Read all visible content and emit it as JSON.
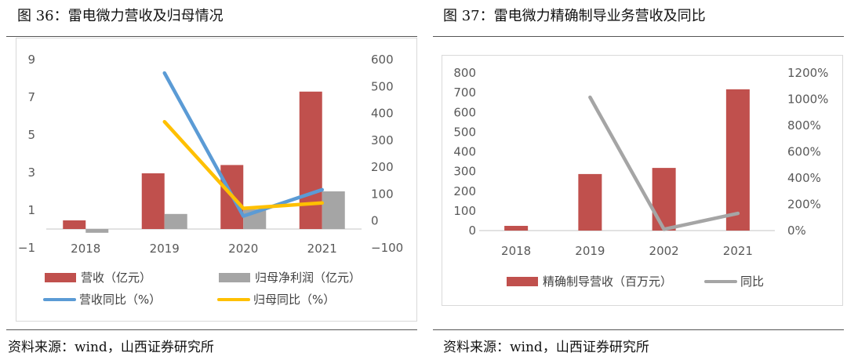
{
  "figures": [
    {
      "title": "图 36：雷电微力营收及归母情况",
      "source": "资料来源：wind，山西证券研究所"
    },
    {
      "title": "图 37：雷电微力精确制导业务营收及同比",
      "source": "资料来源：wind，山西证券研究所"
    }
  ],
  "colors": {
    "revenue": "#c0504d",
    "profit": "#a5a5a5",
    "revenue_yoy": "#5b9bd5",
    "profit_yoy": "#ffc000",
    "yoy_gray": "#a5a5a5"
  },
  "chart_data": [
    {
      "type": "bar",
      "title": "雷电微力营收及归母情况",
      "categories": [
        "2018",
        "2019",
        "2020",
        "2021"
      ],
      "left_axis": {
        "ticks": [
          "9",
          "7",
          "5",
          "3",
          "1",
          "−1"
        ],
        "range": [
          -1,
          9
        ]
      },
      "right_axis": {
        "ticks": [
          "600",
          "500",
          "400",
          "300",
          "200",
          "100",
          "0",
          "−100"
        ],
        "range": [
          -100,
          600
        ]
      },
      "series": [
        {
          "name": "营收（亿元）",
          "kind": "bar",
          "axis": "left",
          "values": [
            0.46,
            2.96,
            3.4,
            7.3
          ]
        },
        {
          "name": "归母净利润（亿元）",
          "kind": "bar",
          "axis": "left",
          "values": [
            -0.2,
            0.8,
            1.05,
            2.0
          ]
        },
        {
          "name": "营收同比（%）",
          "kind": "line",
          "axis": "right",
          "values": [
            null,
            550,
            18,
            116
          ]
        },
        {
          "name": "归母同比（%）",
          "kind": "line",
          "axis": "right",
          "values": [
            null,
            369,
            47,
            67
          ]
        }
      ],
      "legend": "bottom"
    },
    {
      "type": "bar",
      "title": "雷电微力精确制导业务营收及同比",
      "categories": [
        "2018",
        "2019",
        "2002",
        "2021"
      ],
      "left_axis": {
        "ticks": [
          "800",
          "700",
          "600",
          "500",
          "400",
          "300",
          "200",
          "100",
          "0"
        ],
        "range": [
          0,
          800
        ]
      },
      "right_axis": {
        "ticks": [
          "1200%",
          "1000%",
          "800%",
          "600%",
          "400%",
          "200%",
          "0%"
        ],
        "range": [
          0,
          1200
        ]
      },
      "series": [
        {
          "name": "精确制导营收（百万元）",
          "kind": "bar",
          "axis": "left",
          "values": [
            24,
            287,
            318,
            717
          ]
        },
        {
          "name": "同比",
          "kind": "line",
          "axis": "right",
          "values": [
            null,
            1015,
            10,
            131
          ]
        }
      ],
      "legend": "bottom"
    }
  ]
}
